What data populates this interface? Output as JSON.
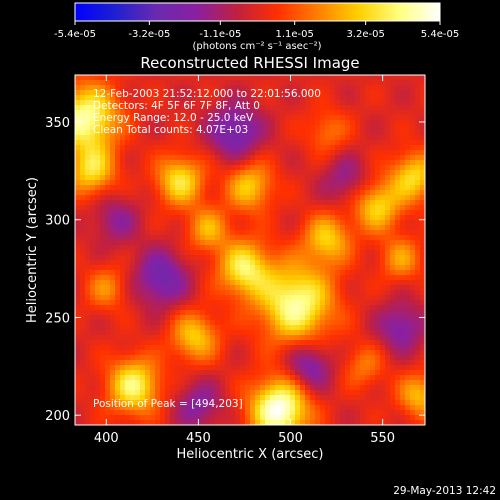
{
  "footer": {
    "timestamp": "29-May-2013 12:42"
  },
  "colorbar": {
    "tick_labels": [
      "-5.4e-05",
      "-3.2e-05",
      "-1.1e-05",
      "1.1e-05",
      "3.2e-05",
      "5.4e-05"
    ],
    "ticks": [
      -5.4e-05,
      -3.2e-05,
      -1.1e-05,
      1.1e-05,
      3.2e-05,
      5.4e-05
    ],
    "min": -5.4e-05,
    "max": 5.4e-05,
    "unit_label": "(photons cm⁻² s⁻¹ asec⁻²)",
    "colormap": [
      "#0000ff",
      "#2020d0",
      "#6a2ab0",
      "#8a20a0",
      "#c02040",
      "#ff3000",
      "#ff8000",
      "#ffd000",
      "#ffff80",
      "#ffffff"
    ]
  },
  "chart_data": {
    "type": "heatmap",
    "title": "Reconstructed RHESSI Image",
    "xlabel": "Heliocentric X (arcsec)",
    "ylabel": "Heliocentric Y (arcsec)",
    "xlim": [
      383,
      573
    ],
    "ylim": [
      195,
      374
    ],
    "x_ticks": [
      400,
      450,
      500,
      550
    ],
    "x_tick_labels": [
      "400",
      "450",
      "500",
      "550"
    ],
    "y_ticks": [
      200,
      250,
      300,
      350
    ],
    "y_tick_labels": [
      "200",
      "250",
      "300",
      "350"
    ],
    "annotations": [
      "12-Feb-2003 21:52:12.000  to 22:01:56.000",
      "Detectors: 4F 5F 6F 7F 8F, Att 0",
      "Energy Range: 12.0 - 25.0 keV",
      "Clean    Total counts: 4.07E+03"
    ],
    "peak_label": "Position of Peak = [494,203]",
    "peak": [
      494,
      203
    ],
    "blobs": [
      {
        "x": 494,
        "y": 203,
        "v": 1.0,
        "s": 11
      },
      {
        "x": 389,
        "y": 352,
        "v": 0.85,
        "s": 12
      },
      {
        "x": 392,
        "y": 325,
        "v": 0.6,
        "s": 9
      },
      {
        "x": 440,
        "y": 320,
        "v": 0.65,
        "s": 9
      },
      {
        "x": 478,
        "y": 317,
        "v": 0.55,
        "s": 9
      },
      {
        "x": 503,
        "y": 257,
        "v": 0.85,
        "s": 14
      },
      {
        "x": 475,
        "y": 275,
        "v": 0.7,
        "s": 10
      },
      {
        "x": 455,
        "y": 295,
        "v": 0.45,
        "s": 8
      },
      {
        "x": 520,
        "y": 290,
        "v": 0.55,
        "s": 9
      },
      {
        "x": 547,
        "y": 307,
        "v": 0.6,
        "s": 9
      },
      {
        "x": 567,
        "y": 322,
        "v": 0.6,
        "s": 9
      },
      {
        "x": 560,
        "y": 280,
        "v": 0.4,
        "s": 8
      },
      {
        "x": 400,
        "y": 265,
        "v": 0.35,
        "s": 8
      },
      {
        "x": 415,
        "y": 215,
        "v": 0.75,
        "s": 10
      },
      {
        "x": 448,
        "y": 240,
        "v": 0.55,
        "s": 9
      },
      {
        "x": 570,
        "y": 210,
        "v": 0.5,
        "s": 8
      },
      {
        "x": 540,
        "y": 225,
        "v": 0.3,
        "s": 8
      },
      {
        "x": 520,
        "y": 345,
        "v": 0.3,
        "s": 8
      },
      {
        "x": 430,
        "y": 270,
        "v": -0.5,
        "s": 10
      },
      {
        "x": 470,
        "y": 345,
        "v": -0.5,
        "s": 10
      },
      {
        "x": 510,
        "y": 225,
        "v": -0.45,
        "s": 9
      },
      {
        "x": 560,
        "y": 245,
        "v": -0.4,
        "s": 9
      },
      {
        "x": 405,
        "y": 300,
        "v": -0.3,
        "s": 9
      },
      {
        "x": 530,
        "y": 320,
        "v": -0.3,
        "s": 9
      },
      {
        "x": 450,
        "y": 205,
        "v": -0.35,
        "s": 9
      }
    ]
  }
}
